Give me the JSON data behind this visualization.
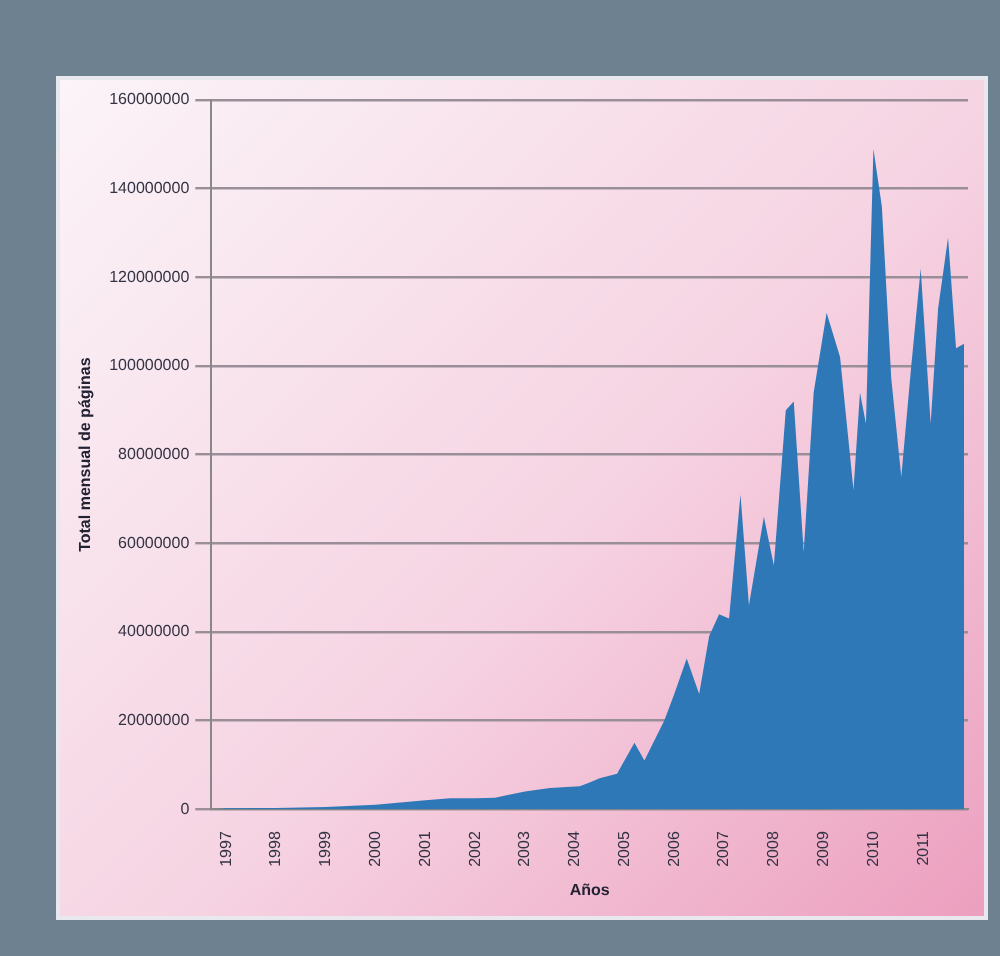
{
  "chart_data": {
    "type": "area",
    "xlabel": "Años",
    "ylabel": "Total mensual de páginas",
    "x": [
      1996.8,
      1997,
      1998,
      1999,
      2000,
      2000.5,
      2001,
      2001.5,
      2002,
      2002.4,
      2003,
      2003.5,
      2004.1,
      2004.3,
      2004.5,
      2004.85,
      2005.2,
      2005.4,
      2005.8,
      2006,
      2006.25,
      2006.5,
      2006.7,
      2006.9,
      2007.1,
      2007.33,
      2007.5,
      2007.8,
      2008,
      2008.24,
      2008.4,
      2008.6,
      2008.8,
      2009.06,
      2009.33,
      2009.6,
      2009.73,
      2009.85,
      2010,
      2010.17,
      2010.36,
      2010.56,
      2010.76,
      2010.95,
      2011.15,
      2011.3,
      2011.5,
      2011.66,
      2011.82
    ],
    "series": [
      {
        "color": "#2f78b8",
        "values": [
          0,
          200000,
          300000,
          500000,
          1000000,
          1500000,
          2000000,
          2500000,
          2500000,
          2600000,
          4000000,
          4800000,
          5200000,
          6000000,
          7000000,
          8000000,
          15000000,
          11000000,
          20000000,
          26000000,
          34000000,
          26000000,
          39000000,
          44000000,
          43000000,
          71000000,
          46000000,
          66000000,
          55000000,
          90000000,
          92000000,
          58000000,
          94000000,
          112000000,
          102000000,
          72000000,
          94000000,
          87000000,
          149000000,
          136000000,
          97000000,
          75000000,
          100000000,
          122000000,
          87000000,
          113000000,
          129000000,
          104000000,
          105000000
        ]
      }
    ],
    "xlim": [
      1996.7,
      2011.9
    ],
    "xticks": [
      1997,
      1998,
      1999,
      2000,
      2001,
      2002,
      2003,
      2004,
      2005,
      2006,
      2007,
      2008,
      2009,
      2010,
      2011
    ],
    "ylim": [
      0,
      160000000
    ],
    "yticks": [
      0,
      20000000,
      40000000,
      60000000,
      80000000,
      100000000,
      120000000,
      140000000,
      160000000
    ],
    "grid": "y",
    "legend": false,
    "marker": "none"
  }
}
